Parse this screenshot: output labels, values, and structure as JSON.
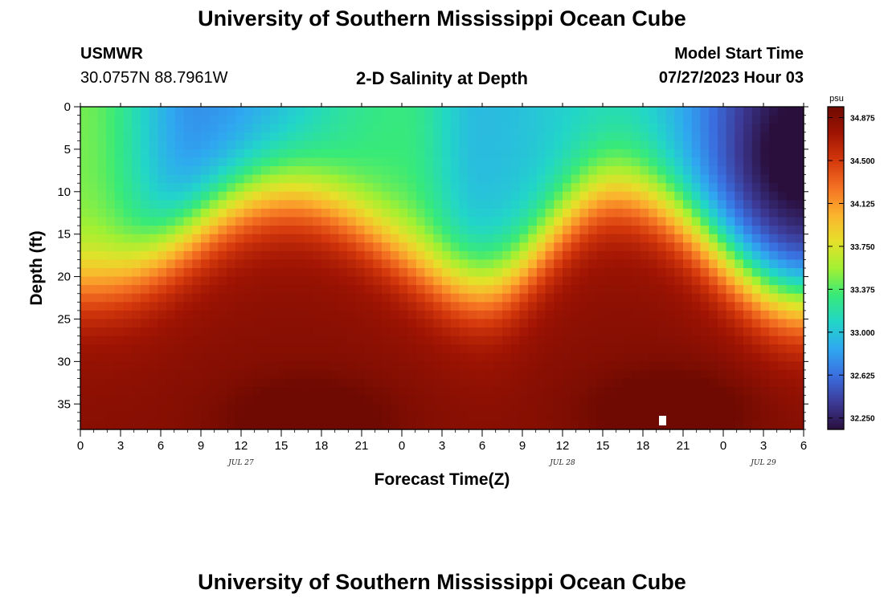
{
  "header": {
    "title": "University of Southern Mississippi Ocean Cube",
    "station": "USMWR",
    "coords": "30.0757N  88.7961W",
    "plot_title": "2-D Salinity at Depth",
    "start_label": "Model Start Time",
    "start_value": "07/27/2023 Hour 03"
  },
  "footer": {
    "title": "University of Southern Mississippi Ocean Cube"
  },
  "chart_data": {
    "type": "heatmap",
    "title": "2-D Salinity at Depth",
    "xlabel": "Forecast Time(Z)",
    "ylabel": "Depth (ft)",
    "x_tick_labels": [
      "0",
      "3",
      "6",
      "9",
      "12",
      "15",
      "18",
      "21",
      "0",
      "3",
      "6",
      "9",
      "12",
      "15",
      "18",
      "21",
      "0",
      "3",
      "6"
    ],
    "x_hours": [
      0,
      3,
      6,
      9,
      12,
      15,
      18,
      21,
      24,
      27,
      30,
      33,
      36,
      39,
      42,
      45,
      48,
      51,
      54
    ],
    "xlim_hours": [
      0,
      54
    ],
    "date_labels": [
      {
        "label": "JUL 27",
        "hour": 12
      },
      {
        "label": "JUL 28",
        "hour": 36
      },
      {
        "label": "JUL 29",
        "hour": 51
      }
    ],
    "y_ticks": [
      0,
      5,
      10,
      15,
      20,
      25,
      30,
      35
    ],
    "ylim": [
      0,
      38
    ],
    "y_inverted": true,
    "colorbar": {
      "unit": "psu",
      "ticks": [
        34.875,
        34.5,
        34.125,
        33.75,
        33.375,
        33.0,
        32.625,
        32.25
      ],
      "range": [
        32.15,
        34.97
      ],
      "colors": [
        "#2a0f3d",
        "#3c3a96",
        "#3a6fe0",
        "#2fa8f0",
        "#22d6c8",
        "#38ea78",
        "#a3f032",
        "#e6e02a",
        "#fbb22e",
        "#f47022",
        "#d4380c",
        "#a01403",
        "#6e0a02"
      ]
    },
    "thermocline_depth_ft": [
      {
        "hour": 0,
        "depth": 22
      },
      {
        "hour": 15,
        "depth": 11
      },
      {
        "hour": 30,
        "depth": 22
      },
      {
        "hour": 40,
        "depth": 11
      },
      {
        "hour": 54,
        "depth": 23
      }
    ],
    "surface_salinity_psu": [
      {
        "hour": 0,
        "value": 33.45
      },
      {
        "hour": 9,
        "value": 32.75
      },
      {
        "hour": 24,
        "value": 33.3
      },
      {
        "hour": 30,
        "value": 32.95
      },
      {
        "hour": 40,
        "value": 33.1
      },
      {
        "hour": 54,
        "value": 32.2
      }
    ],
    "bottom_salinity_psu": 34.85,
    "max_salinity_at": [
      {
        "hour": 17,
        "depth": 37
      },
      {
        "hour": 44,
        "depth": 36
      }
    ],
    "min_salinity_at": {
      "hour": 54,
      "depth": 6
    },
    "grid": false
  }
}
